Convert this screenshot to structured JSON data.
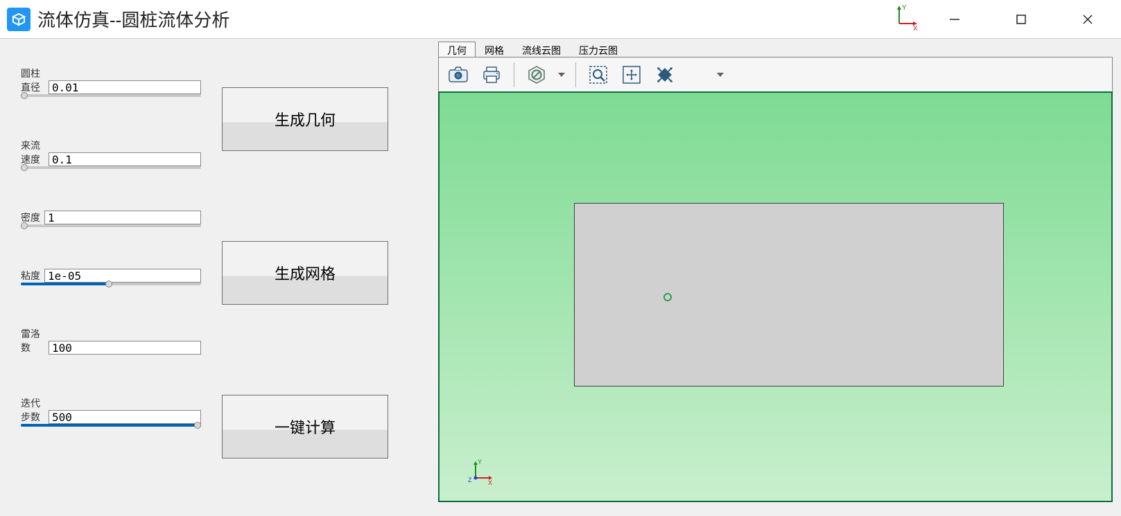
{
  "window": {
    "title": "流体仿真--圆桩流体分析"
  },
  "params": [
    {
      "label": "圆柱直径",
      "value": "0.01",
      "fill": 0,
      "thumb": 2,
      "has_slider": true
    },
    {
      "label": "来流速度",
      "value": "0.1",
      "fill": 0,
      "thumb": 2,
      "has_slider": true
    },
    {
      "label": "密度",
      "value": "1",
      "fill": 0,
      "thumb": 2,
      "has_slider": true
    },
    {
      "label": "粘度",
      "value": "1e-05",
      "fill": 49,
      "thumb": 49,
      "has_slider": true
    },
    {
      "label": "雷洛数",
      "value": "100",
      "fill": 0,
      "thumb": 0,
      "has_slider": false
    },
    {
      "label": "迭代步数",
      "value": "500",
      "fill": 100,
      "thumb": 98,
      "has_slider": true
    }
  ],
  "buttons": {
    "gen_geom": "生成几何",
    "gen_mesh": "生成网格",
    "calc": "一键计算"
  },
  "tabs": [
    "几何",
    "网格",
    "流线云图",
    "压力云图"
  ],
  "active_tab": 0,
  "colors": {
    "viewport_border": "#0a6b3f",
    "viewport_grad_top": "#7edb93",
    "viewport_grad_bot": "#c9efcd",
    "rect_fill": "#d0d0d0",
    "circle_stroke": "#2e9b4f",
    "slider_fill": "#0063b1"
  },
  "triad": {
    "x": "X",
    "y": "Y",
    "z": "Z"
  }
}
